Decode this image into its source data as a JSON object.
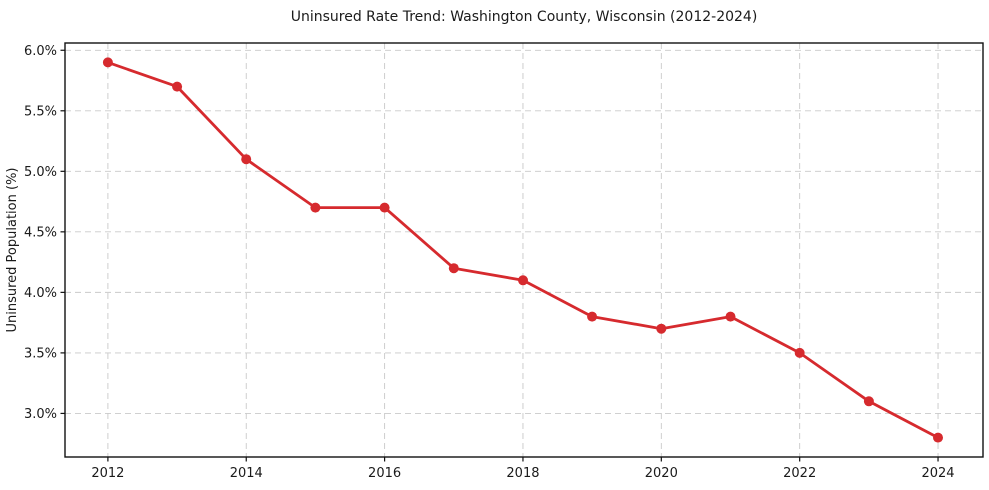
{
  "figure": {
    "background": "#ffffff"
  },
  "chart_data": {
    "type": "line",
    "title": "Uninsured Rate Trend: Washington County, Wisconsin (2012-2024)",
    "xlabel": "",
    "ylabel": "Uninsured Population (%)",
    "x": [
      2012,
      2013,
      2014,
      2015,
      2016,
      2017,
      2018,
      2019,
      2020,
      2021,
      2022,
      2023,
      2024
    ],
    "values": [
      5.9,
      5.7,
      5.1,
      4.7,
      4.7,
      4.2,
      4.1,
      3.8,
      3.7,
      3.8,
      3.5,
      3.1,
      2.8
    ],
    "series_name": "Uninsured rate",
    "xlim": [
      2011.38,
      2024.65
    ],
    "ylim": [
      2.64,
      6.06
    ],
    "x_ticks": [
      {
        "value": 2012,
        "label": "2012"
      },
      {
        "value": 2014,
        "label": "2014"
      },
      {
        "value": 2016,
        "label": "2016"
      },
      {
        "value": 2018,
        "label": "2018"
      },
      {
        "value": 2020,
        "label": "2020"
      },
      {
        "value": 2022,
        "label": "2022"
      },
      {
        "value": 2024,
        "label": "2024"
      }
    ],
    "y_ticks": [
      {
        "value": 6.0,
        "label": "6.0%"
      },
      {
        "value": 5.5,
        "label": "5.5%"
      },
      {
        "value": 5.0,
        "label": "5.0%"
      },
      {
        "value": 4.5,
        "label": "4.5%"
      },
      {
        "value": 4.0,
        "label": "4.0%"
      },
      {
        "value": 3.5,
        "label": "3.5%"
      },
      {
        "value": 3.0,
        "label": "3.0%"
      }
    ],
    "grid": true,
    "grid_style": "dashed",
    "legend": "none",
    "colors": {
      "line": "#d62a2e",
      "marker": "#d62a2e",
      "grid": "#c9c9c9",
      "spine": "#111111",
      "text": "#1a1a1a",
      "background": "#ffffff"
    }
  }
}
